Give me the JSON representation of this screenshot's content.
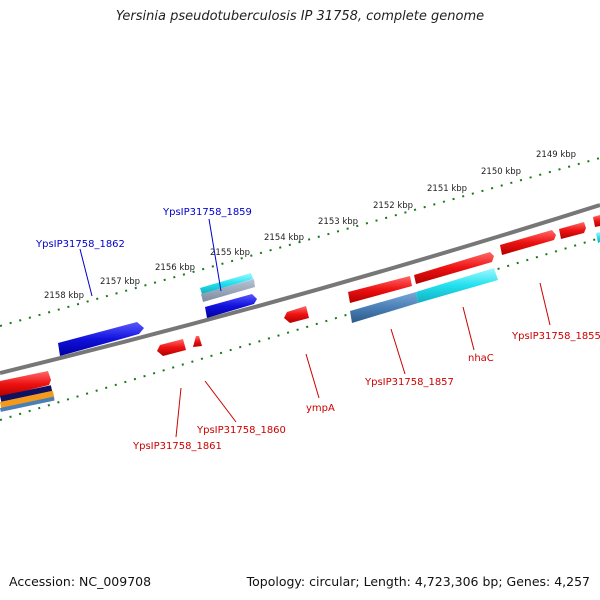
{
  "title": "Yersinia pseudotuberculosis IP 31758, complete genome",
  "footer": {
    "accession": "Accession: NC_009708",
    "summary": "Topology: circular; Length: 4,723,306 bp; Genes: 4,257"
  },
  "scale_labels": [
    "2149 kbp",
    "2150 kbp",
    "2151 kbp",
    "2152 kbp",
    "2153 kbp",
    "2154 kbp",
    "2155 kbp",
    "2156 kbp",
    "2157 kbp",
    "2158 kbp"
  ],
  "gene_labels": [
    {
      "name": "YpsIP31758_1859",
      "strand": "forward"
    },
    {
      "name": "YpsIP31758_1862",
      "strand": "forward"
    },
    {
      "name": "YpsIP31758_1855",
      "strand": "reverse"
    },
    {
      "name": "nhaC",
      "strand": "reverse"
    },
    {
      "name": "YpsIP31758_1857",
      "strand": "reverse"
    },
    {
      "name": "ympA",
      "strand": "reverse"
    },
    {
      "name": "YpsIP31758_1860",
      "strand": "reverse"
    },
    {
      "name": "YpsIP31758_1861",
      "strand": "reverse"
    }
  ],
  "colors": {
    "forward": "#0000cc",
    "reverse": "#cc0000",
    "cds_red": "#ee1111",
    "cds_blue": "#1111dd",
    "cyan": "#22e0ee",
    "steel": "#4a7fb5",
    "backbone": "#7a7a7a",
    "ticks": "#1a7a1a"
  }
}
